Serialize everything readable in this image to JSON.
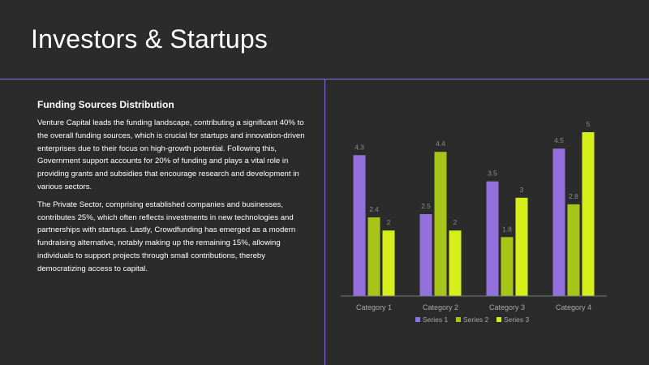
{
  "slide": {
    "title": "Investors & Startups",
    "subheading": "Funding Sources Distribution",
    "paragraphs": [
      "Venture Capital leads the funding landscape, contributing a significant 40% to the overall funding sources, which is crucial for startups and innovation-driven enterprises due to their focus on high-growth potential. Following this, Government support accounts for 20% of funding and plays a vital role in providing grants and subsidies that encourage research and development in various sectors.",
      "The Private Sector, comprising established companies and businesses, contributes 25%, which often reflects investments in new technologies and partnerships with startups. Lastly, Crowdfunding has emerged as a modern fundraising alternative, notably making up the remaining 15%, allowing individuals to support projects through small contributions, thereby democratizing access to capital."
    ]
  },
  "colors": {
    "accent_line": "#8a6fe0",
    "series": [
      "#9370db",
      "#a8c61a",
      "#d6ef1a"
    ]
  },
  "chart_data": {
    "type": "bar",
    "categories": [
      "Category 1",
      "Category 2",
      "Category 3",
      "Category 4"
    ],
    "series": [
      {
        "name": "Series 1",
        "values": [
          4.3,
          2.5,
          3.5,
          4.5
        ]
      },
      {
        "name": "Series 2",
        "values": [
          2.4,
          4.4,
          1.8,
          2.8
        ]
      },
      {
        "name": "Series 3",
        "values": [
          2,
          2,
          3,
          5
        ]
      }
    ],
    "ylim": [
      0,
      5
    ],
    "grid": false,
    "legend": "bottom",
    "data_labels": true
  }
}
